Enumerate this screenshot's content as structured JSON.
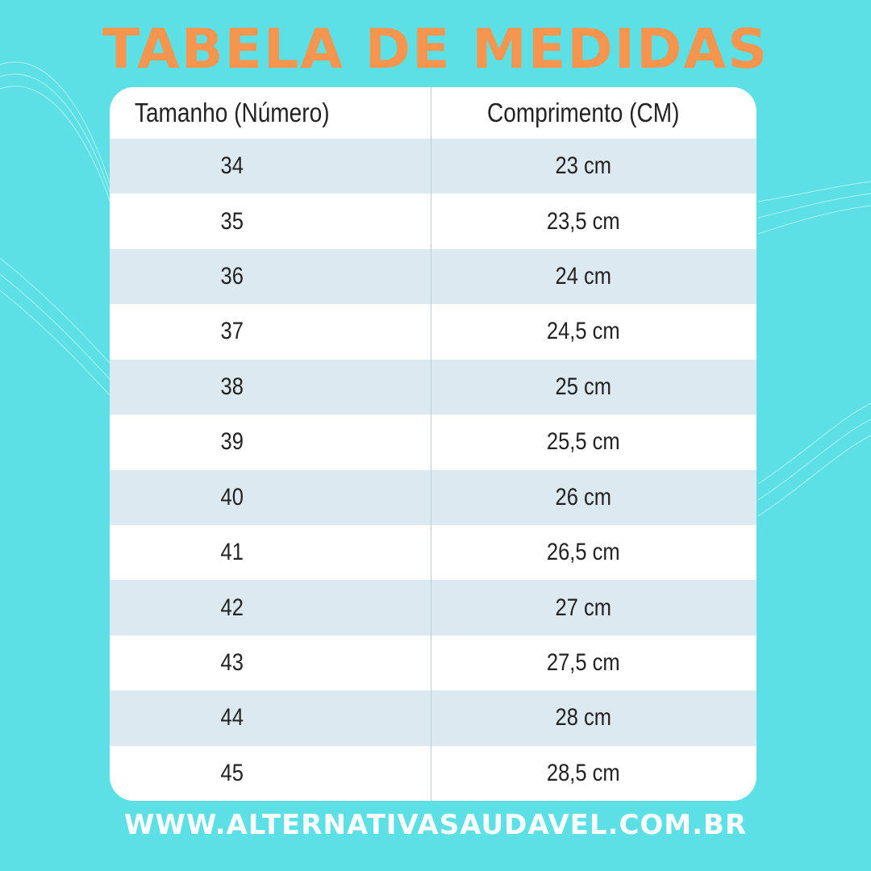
{
  "header": {
    "title": "TABELA DE MEDIDAS"
  },
  "table": {
    "columns": [
      "Tamanho (Número)",
      "Comprimento (CM)"
    ],
    "rows": [
      [
        "34",
        "23 cm"
      ],
      [
        "35",
        "23,5 cm"
      ],
      [
        "36",
        "24 cm"
      ],
      [
        "37",
        "24,5 cm"
      ],
      [
        "38",
        "25 cm"
      ],
      [
        "39",
        "25,5 cm"
      ],
      [
        "40",
        "26 cm"
      ],
      [
        "41",
        "26,5 cm"
      ],
      [
        "42",
        "27 cm"
      ],
      [
        "43",
        "27,5 cm"
      ],
      [
        "44",
        "28 cm"
      ],
      [
        "45",
        "28,5 cm"
      ]
    ]
  },
  "footer": {
    "url": "WWW.ALTERNATIVASAUDAVEL.COM.BR"
  }
}
